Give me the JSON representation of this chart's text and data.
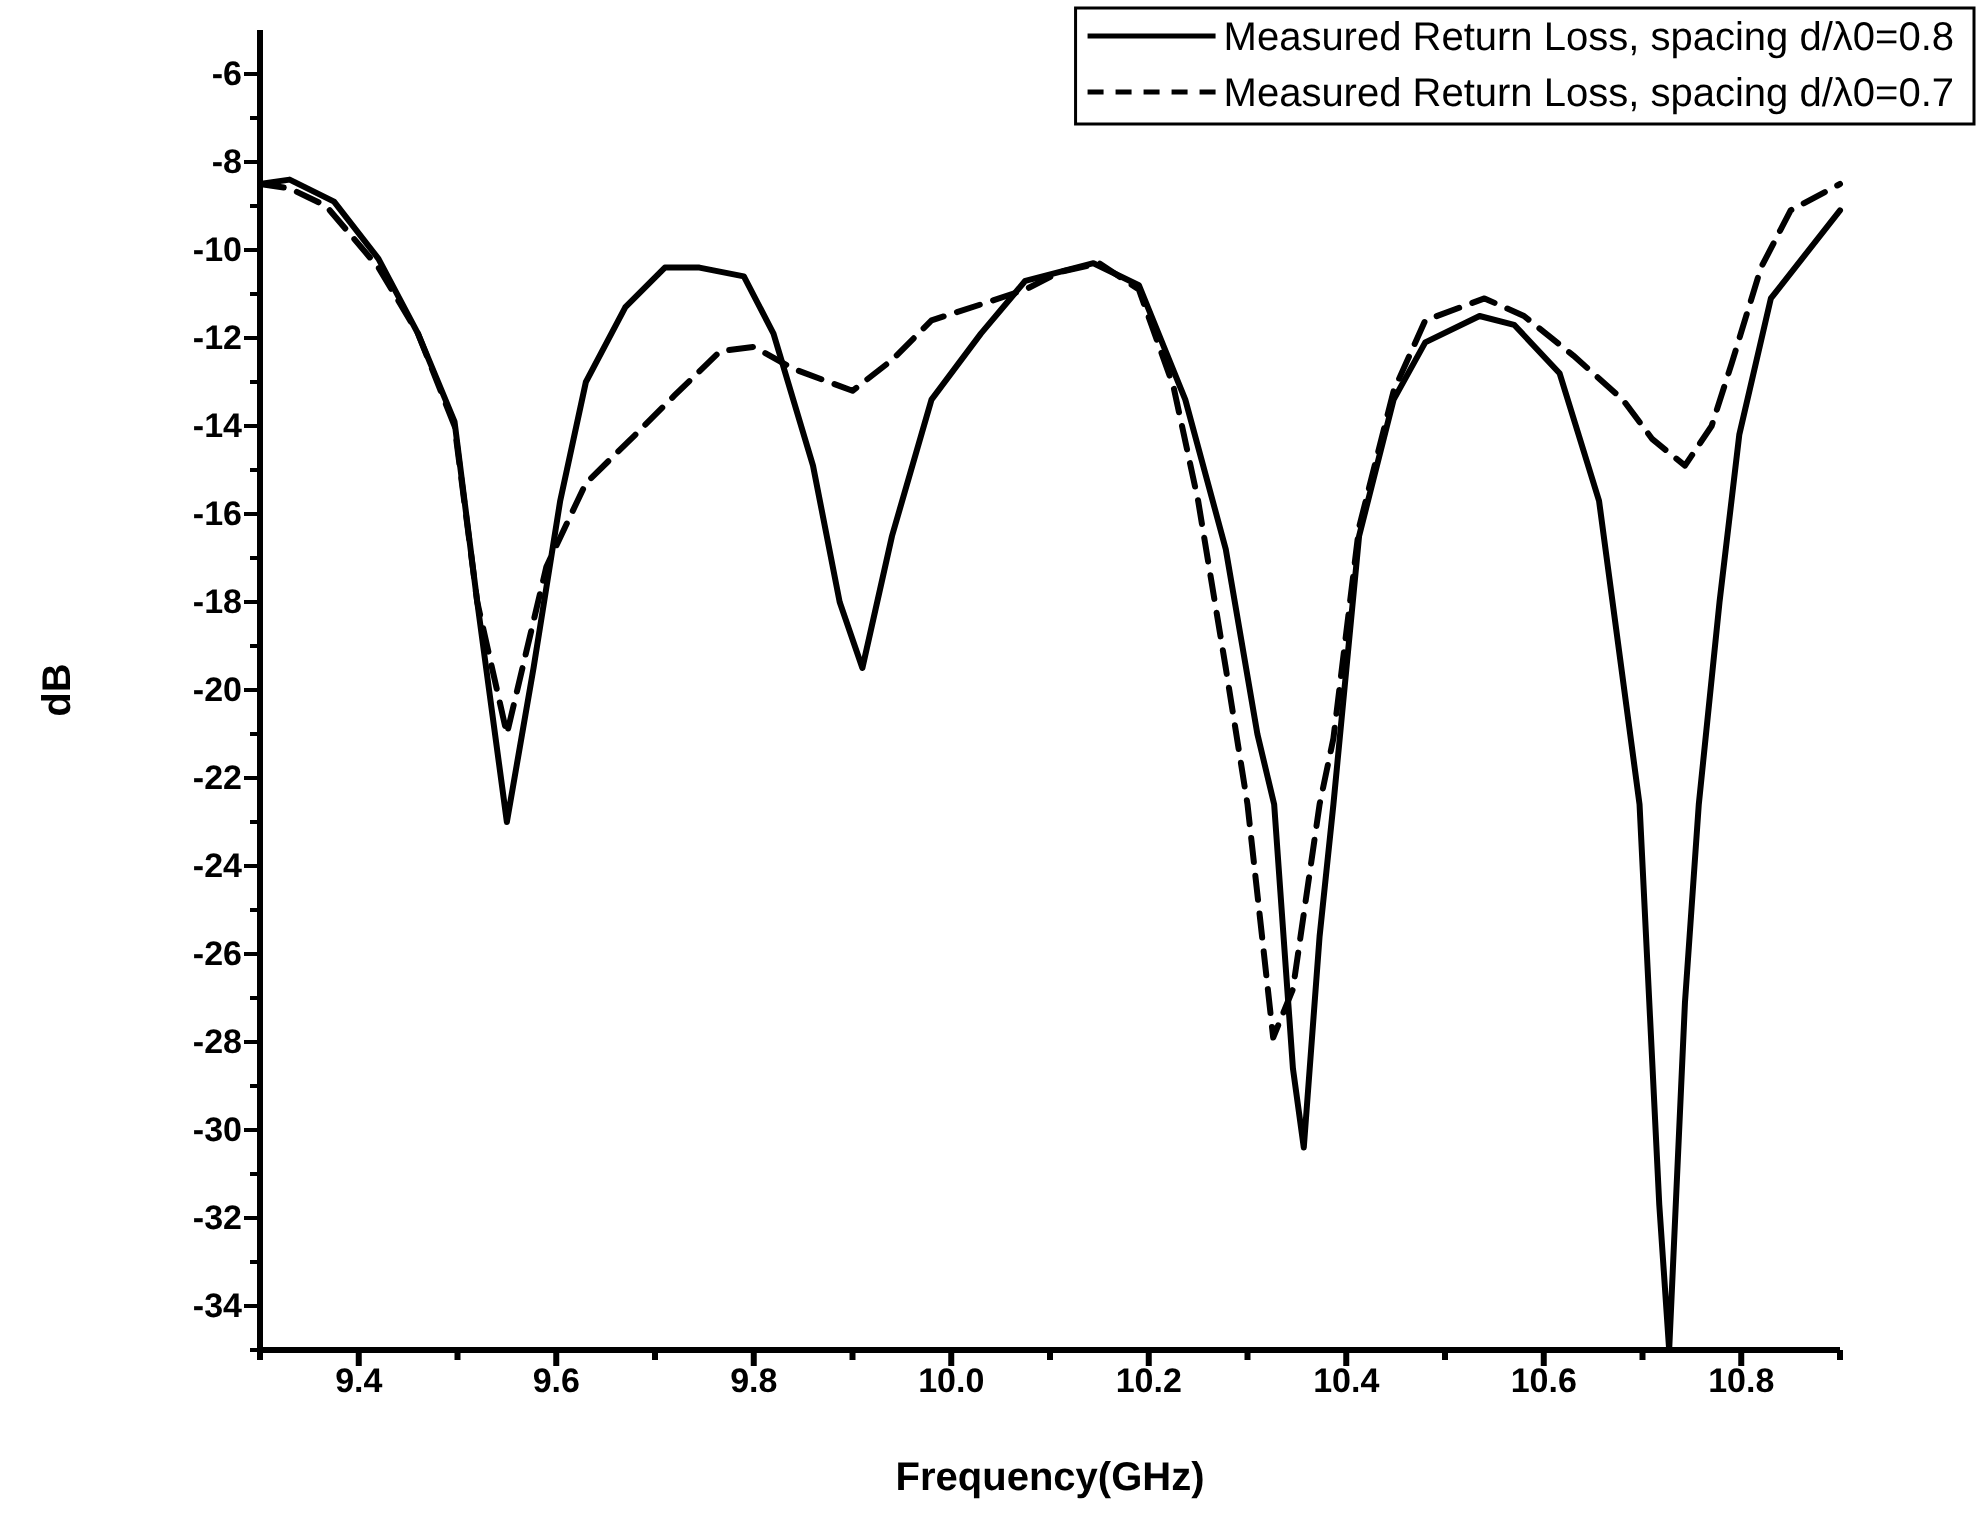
{
  "chart_data": {
    "type": "line",
    "xlabel": "Frequency(GHz)",
    "ylabel": "dB",
    "xlim": [
      9.3,
      10.9
    ],
    "ylim": [
      -35,
      -5
    ],
    "xticks": [
      {
        "value": 9.3,
        "label": null
      },
      9.4,
      {
        "value": 9.5,
        "label": null
      },
      9.6,
      {
        "value": 9.7,
        "label": null
      },
      9.8,
      {
        "value": 9.9,
        "label": null
      },
      {
        "value": 10,
        "label": "10.0"
      },
      {
        "value": 10.1,
        "label": null
      },
      10.2,
      {
        "value": 10.3,
        "label": null
      },
      10.4,
      {
        "value": 10.5,
        "label": null
      },
      10.6,
      {
        "value": 10.7,
        "label": null
      },
      10.8,
      {
        "value": 10.9,
        "label": null
      }
    ],
    "yticks": [
      {
        "value": -35,
        "label": null
      },
      -34,
      {
        "value": -33,
        "label": null
      },
      -32,
      {
        "value": -31,
        "label": null
      },
      -30,
      {
        "value": -29,
        "label": null
      },
      -28,
      {
        "value": -27,
        "label": null
      },
      -26,
      {
        "value": -25,
        "label": null
      },
      -24,
      {
        "value": -23,
        "label": null
      },
      -22,
      {
        "value": -21,
        "label": null
      },
      -20,
      {
        "value": -19,
        "label": null
      },
      -18,
      {
        "value": -17,
        "label": null
      },
      -16,
      {
        "value": -15,
        "label": null
      },
      -14,
      {
        "value": -13,
        "label": null
      },
      -12,
      {
        "value": -11,
        "label": null
      },
      -10,
      {
        "value": -9,
        "label": null
      },
      -8,
      {
        "value": -7,
        "label": null
      },
      -6
    ],
    "grid": false,
    "legend": "top right",
    "marker": "none",
    "series": [
      {
        "name": "Measured Return Loss, spacing d/λ0=0.8",
        "color": "#000000",
        "line_style": "solid",
        "x": [
          9.3,
          9.33,
          9.375,
          9.42,
          9.46,
          9.497,
          9.52,
          9.55,
          9.577,
          9.604,
          9.63,
          9.67,
          9.71,
          9.745,
          9.79,
          9.82,
          9.86,
          9.887,
          9.91,
          9.94,
          9.98,
          10.03,
          10.075,
          10.144,
          10.19,
          10.237,
          10.278,
          10.31,
          10.327,
          10.346,
          10.357,
          10.373,
          10.387,
          10.413,
          10.448,
          10.48,
          10.535,
          10.57,
          10.616,
          10.656,
          10.697,
          10.717,
          10.727,
          10.743,
          10.757,
          10.778,
          10.798,
          10.83,
          10.9
        ],
        "values": [
          -8.5,
          -8.4,
          -8.9,
          -10.2,
          -11.9,
          -13.9,
          -18,
          -23,
          -19.5,
          -15.7,
          -13,
          -11.3,
          -10.4,
          -10.4,
          -10.6,
          -11.9,
          -14.9,
          -18,
          -19.5,
          -16.5,
          -13.4,
          -11.9,
          -10.7,
          -10.3,
          -10.8,
          -13.4,
          -16.8,
          -21,
          -22.6,
          -28.6,
          -30.4,
          -25.6,
          -22.6,
          -16.5,
          -13.4,
          -12.1,
          -11.5,
          -11.7,
          -12.8,
          -15.7,
          -22.6,
          -31.7,
          -35,
          -27.1,
          -22.6,
          -18,
          -14.2,
          -11.1,
          -9.1
        ]
      },
      {
        "name": "Measured Return Loss, spacing d/λ0=0.7",
        "color": "#000000",
        "line_style": "dashed",
        "x": [
          9.3,
          9.33,
          9.367,
          9.42,
          9.46,
          9.497,
          9.52,
          9.55,
          9.59,
          9.63,
          9.68,
          9.72,
          9.766,
          9.8,
          9.84,
          9.9,
          9.94,
          9.98,
          10.035,
          10.075,
          10.11,
          10.15,
          10.19,
          10.225,
          10.25,
          10.278,
          10.3,
          10.326,
          10.346,
          10.373,
          10.387,
          10.413,
          10.448,
          10.48,
          10.54,
          10.58,
          10.63,
          10.68,
          10.71,
          10.743,
          10.77,
          10.79,
          10.82,
          10.85,
          10.9
        ],
        "values": [
          -8.5,
          -8.6,
          -9.0,
          -10.4,
          -11.9,
          -14,
          -18,
          -21,
          -17.2,
          -15.3,
          -14.2,
          -13.3,
          -12.3,
          -12.2,
          -12.7,
          -13.2,
          -12.5,
          -11.6,
          -11.2,
          -10.9,
          -10.5,
          -10.3,
          -10.9,
          -13.1,
          -15.7,
          -19.5,
          -22.6,
          -27.9,
          -26.8,
          -22.6,
          -21.1,
          -16.3,
          -13.2,
          -11.6,
          -11.1,
          -11.5,
          -12.4,
          -13.4,
          -14.3,
          -14.9,
          -14,
          -12.6,
          -10.4,
          -9.1,
          -8.5
        ]
      }
    ]
  }
}
